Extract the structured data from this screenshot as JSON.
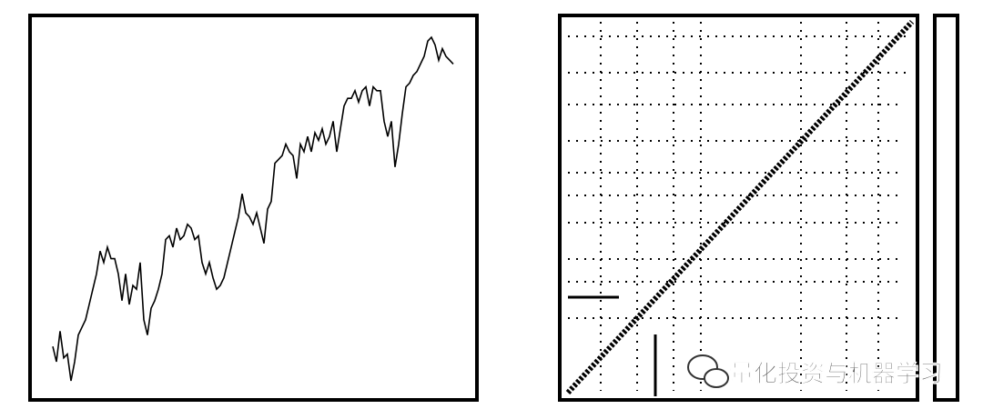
{
  "chart_data": {
    "type": "line",
    "values": [
      14,
      10,
      18,
      11,
      12,
      5,
      10,
      17,
      19,
      21,
      25,
      29,
      33,
      39,
      36,
      40,
      37,
      37,
      33,
      26,
      33,
      25,
      30,
      29,
      36,
      21,
      17,
      24,
      26,
      29,
      33,
      42,
      43,
      40,
      45,
      42,
      43,
      46,
      45,
      42,
      43,
      36,
      33,
      36,
      32,
      29,
      30,
      32,
      36,
      40,
      44,
      48,
      54,
      49,
      48,
      46,
      49,
      45,
      41,
      50,
      52,
      62,
      63,
      64,
      67,
      65,
      64,
      58,
      67,
      65,
      69,
      65,
      70,
      68,
      71,
      67,
      69,
      73,
      65,
      71,
      77,
      79,
      79,
      81,
      78,
      81,
      82,
      77,
      82,
      81,
      81,
      73,
      69,
      73,
      61,
      67,
      75,
      82,
      83,
      85,
      86,
      88,
      90,
      94,
      95,
      93,
      89,
      92,
      90,
      89,
      88
    ],
    "color": "#000000",
    "ylim": [
      0,
      100
    ]
  },
  "watermark": "量化投资与机器学习"
}
